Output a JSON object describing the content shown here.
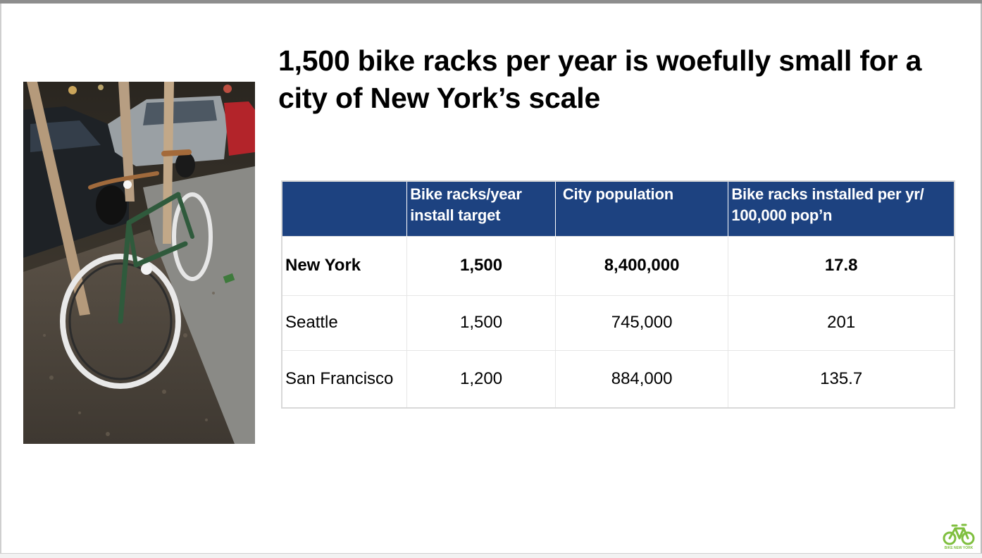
{
  "slide": {
    "title": "1,500 bike racks per year is woefully small for a city of New York’s scale",
    "photo": "photo-green-bicycle-locked-to-tree-at-night"
  },
  "table": {
    "headers": [
      "",
      "Bike racks/year install target",
      "City population",
      "Bike racks installed per yr/ 100,000 pop’n"
    ],
    "rows": [
      {
        "city": "New York",
        "target": "1,500",
        "population": "8,400,000",
        "per_100k": "17.8"
      },
      {
        "city": "Seattle",
        "target": "1,500",
        "population": "745,000",
        "per_100k": "201"
      },
      {
        "city": "San Francisco",
        "target": "1,200",
        "population": "884,000",
        "per_100k": "135.7"
      }
    ]
  },
  "logo": {
    "text": "BIKE NEW YORK",
    "icon": "bike-new-york-logo-icon"
  },
  "colors": {
    "header_bg": "#1d4280",
    "header_text": "#ffffff",
    "logo_green": "#7fbf3f"
  }
}
